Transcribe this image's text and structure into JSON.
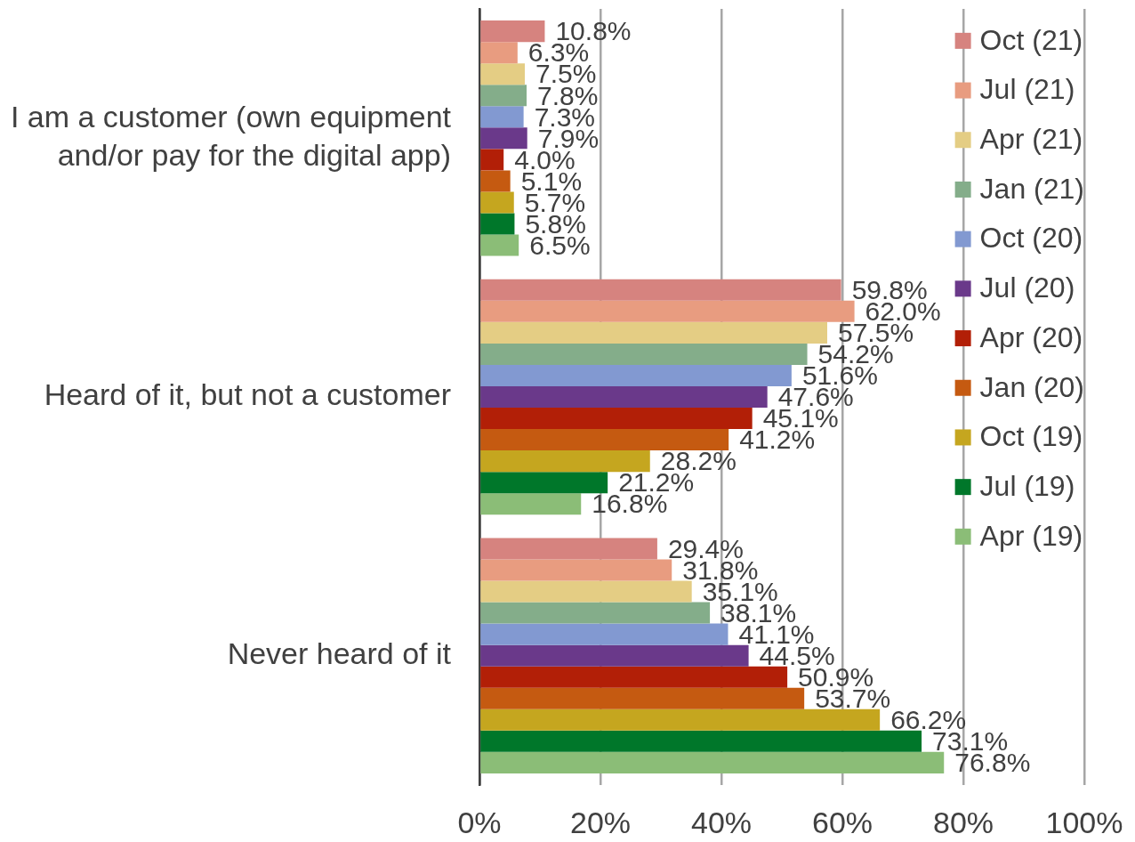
{
  "chart_data": {
    "type": "bar",
    "orientation": "horizontal",
    "categories": [
      "I am a customer (own equipment and/or pay for the digital app)",
      "Heard of it, but not a customer",
      "Never heard of it"
    ],
    "series": [
      {
        "name": "Oct (21)",
        "color": "#d6837f",
        "values": [
          10.8,
          59.8,
          29.4
        ],
        "value_labels": [
          "10.8%",
          "59.8%",
          "29.4%"
        ]
      },
      {
        "name": "Jul (21)",
        "color": "#e89c80",
        "values": [
          6.3,
          62.0,
          31.8
        ],
        "value_labels": [
          "6.3%",
          "62.0%",
          "31.8%"
        ]
      },
      {
        "name": "Apr (21)",
        "color": "#e4cd84",
        "values": [
          7.5,
          57.5,
          35.1
        ],
        "value_labels": [
          "7.5%",
          "57.5%",
          "35.1%"
        ]
      },
      {
        "name": "Jan (21)",
        "color": "#84ad8a",
        "values": [
          7.8,
          54.2,
          38.1
        ],
        "value_labels": [
          "7.8%",
          "54.2%",
          "38.1%"
        ]
      },
      {
        "name": "Oct (20)",
        "color": "#8299d1",
        "values": [
          7.3,
          51.6,
          41.1
        ],
        "value_labels": [
          "7.3%",
          "51.6%",
          "41.1%"
        ]
      },
      {
        "name": "Jul (20)",
        "color": "#6a398a",
        "values": [
          7.9,
          47.6,
          44.5
        ],
        "value_labels": [
          "7.9%",
          "47.6%",
          "44.5%"
        ]
      },
      {
        "name": "Apr (20)",
        "color": "#b21f07",
        "values": [
          4.0,
          45.1,
          50.9
        ],
        "value_labels": [
          "4.0%",
          "45.1%",
          "50.9%"
        ]
      },
      {
        "name": "Jan (20)",
        "color": "#c55a11",
        "values": [
          5.1,
          41.2,
          53.7
        ],
        "value_labels": [
          "5.1%",
          "41.2%",
          "53.7%"
        ]
      },
      {
        "name": "Oct (19)",
        "color": "#c5a61f",
        "values": [
          5.7,
          28.2,
          66.2
        ],
        "value_labels": [
          "5.7%",
          "28.2%",
          "66.2%"
        ]
      },
      {
        "name": "Jul (19)",
        "color": "#00772a",
        "values": [
          5.8,
          21.2,
          73.1
        ],
        "value_labels": [
          "5.8%",
          "21.2%",
          "73.1%"
        ]
      },
      {
        "name": "Apr (19)",
        "color": "#8bbd77",
        "values": [
          6.5,
          16.8,
          76.8
        ],
        "value_labels": [
          "6.5%",
          "16.8%",
          "76.8%"
        ]
      }
    ],
    "xlim": [
      0,
      100
    ],
    "xticks": [
      {
        "value": 0,
        "label": "0%"
      },
      {
        "value": 20,
        "label": "20%"
      },
      {
        "value": 40,
        "label": "40%"
      },
      {
        "value": 60,
        "label": "60%"
      },
      {
        "value": 80,
        "label": "80%"
      },
      {
        "value": 100,
        "label": "100%"
      }
    ],
    "grid": "x",
    "legend": "top right"
  }
}
